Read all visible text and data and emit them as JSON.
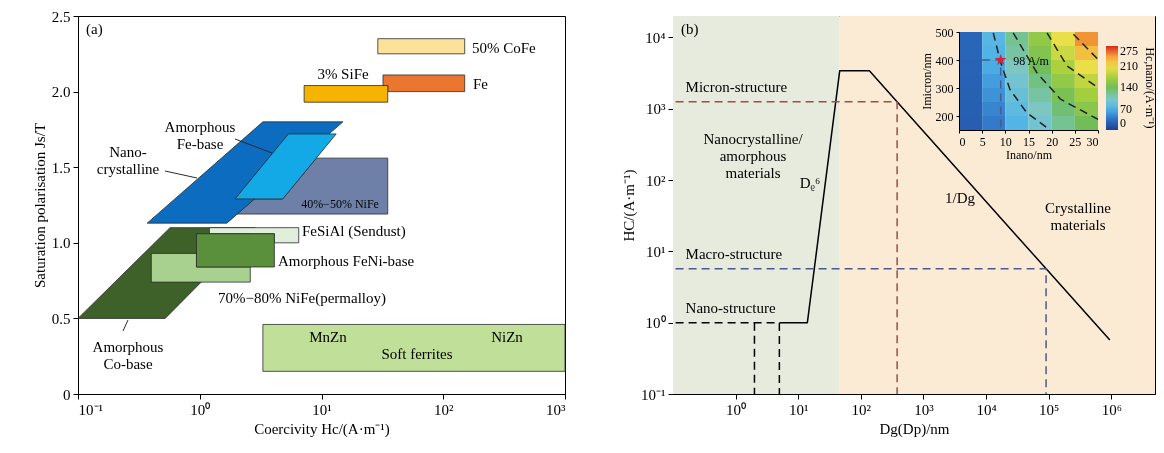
{
  "chart_data": [
    {
      "type": "area",
      "xlabel": "Coercivity Hc/(A·m⁻¹)",
      "ylabel": "Saturation polarisation Js/T",
      "log": "x",
      "xlim": [
        0.1,
        1000
      ],
      "xticks": [
        {
          "value": 0.1,
          "label": "10⁻¹"
        },
        {
          "value": 1,
          "label": "10⁰"
        },
        {
          "value": 10,
          "label": "10¹"
        },
        {
          "value": 100,
          "label": "10²"
        },
        {
          "value": 1000,
          "label": "10³"
        }
      ],
      "ylim": [
        0,
        2.5
      ],
      "yticks": [
        0,
        0.5,
        {
          "value": 1,
          "label": "1.0"
        },
        1.5,
        {
          "value": 2,
          "label": "2.0"
        },
        2.5
      ],
      "series": [
        {
          "name": "Amorphous\nCo-base",
          "x": [
            0.1,
            0.52,
            2.85,
            0.57,
            0.1
          ],
          "values": [
            0.5,
            0.5,
            1.1,
            1.1,
            0.5
          ],
          "color": "#3d6128"
        },
        {
          "name": "FeSiAl (Sendust)",
          "x": [
            1.2,
            4.1,
            4.1,
            6.5,
            6.5,
            1.2,
            1.2
          ],
          "values": [
            1.06,
            1.06,
            1.0,
            1.0,
            1.1,
            1.1,
            1.06
          ],
          "color": "#e0eedb"
        },
        {
          "name": "70%−80% NiFe(permalloy)",
          "x": [
            0.4,
            2.6,
            2.6,
            0.94,
            0.94,
            0.4,
            0.4
          ],
          "values": [
            0.74,
            0.74,
            0.84,
            0.84,
            0.93,
            0.93,
            0.74
          ],
          "color": "#a8d18f"
        },
        {
          "name": "Amorphous FeNi-base",
          "x": [
            0.94,
            4.1,
            4.1,
            0.94,
            0.94
          ],
          "values": [
            0.84,
            0.84,
            1.06,
            1.06,
            0.84
          ],
          "color": "#5a8f3c"
        },
        {
          "name": "40%−50% NiFe",
          "x": [
            2.01,
            35,
            35,
            9.1,
            4.8,
            2.8,
            2.01
          ],
          "values": [
            1.19,
            1.19,
            1.56,
            1.56,
            1.29,
            1.29,
            1.19
          ],
          "color": "#6f80a8"
        },
        {
          "name": "Nano-\ncrystalline",
          "x": [
            0.37,
            1.67,
            15,
            3.3,
            0.37
          ],
          "values": [
            1.13,
            1.13,
            1.8,
            1.8,
            1.13
          ],
          "color": "#0b6cc0"
        },
        {
          "name": "Amorphous\nFe-base",
          "x": [
            1.95,
            4.8,
            13.2,
            5.35,
            1.95
          ],
          "values": [
            1.29,
            1.29,
            1.72,
            1.72,
            1.29
          ],
          "color": "#12a9e6"
        },
        {
          "name": "Fe",
          "x": [
            35,
            150,
            150,
            32,
            32,
            35,
            35
          ],
          "values": [
            2.0,
            2.0,
            2.11,
            2.11,
            2.04,
            2.04,
            2.0
          ],
          "color": "#ea7630"
        },
        {
          "name": "3% SiFe",
          "x": [
            7.2,
            35,
            35,
            7.2,
            7.2
          ],
          "values": [
            1.93,
            1.93,
            2.04,
            2.04,
            1.93
          ],
          "color": "#f6b400"
        },
        {
          "name": "50% CoFe",
          "x": [
            29,
            150,
            150,
            29,
            29
          ],
          "values": [
            2.25,
            2.25,
            2.35,
            2.35,
            2.25
          ],
          "color": "#fbe29b"
        },
        {
          "name": "Soft ferrites",
          "x": [
            3.3,
            1000,
            1000,
            3.3,
            3.3
          ],
          "values": [
            0.15,
            0.15,
            0.46,
            0.46,
            0.15
          ],
          "color": "#c0df98"
        }
      ],
      "annotations": [
        "(a)",
        "MnZn",
        "NiZn"
      ]
    },
    {
      "type": "line",
      "xlabel": "Dg(Dp)/nm",
      "ylabel": "HC/(A·m⁻¹)",
      "log": "xy",
      "xlim": [
        0.1,
        5000000
      ],
      "xticks": [
        {
          "value": 1,
          "label": "10⁰"
        },
        {
          "value": 10,
          "label": "10¹"
        },
        {
          "value": 100,
          "label": "10²"
        },
        {
          "value": 1000,
          "label": "10³"
        },
        {
          "value": 10000,
          "label": "10⁴"
        },
        {
          "value": 100000,
          "label": "10⁵"
        },
        {
          "value": 1000000,
          "label": "10⁶"
        }
      ],
      "ylim": [
        0.1,
        20000
      ],
      "yticks": [
        {
          "value": 0.1,
          "label": "10⁻¹"
        },
        {
          "value": 1,
          "label": "10⁰"
        },
        {
          "value": 10,
          "label": "10¹"
        },
        {
          "value": 100,
          "label": "10²"
        },
        {
          "value": 1000,
          "label": "10³"
        },
        {
          "value": 10000,
          "label": "10⁴"
        }
      ],
      "bands": [
        {
          "axis": "x",
          "from": 0.1,
          "to": 46,
          "color": "#e6ebde",
          "label": "Nanocrystalline/\namorphous\nmaterials"
        },
        {
          "axis": "x",
          "from": 46,
          "to": 5000000,
          "color": "#fcebd4",
          "label": "Crystalline\nmaterials"
        }
      ],
      "series": [
        {
          "x": [
            5,
            14,
            46,
            137,
            950000
          ],
          "values": [
            1,
            1,
            3400,
            3400,
            0.57
          ],
          "color": "#000000"
        },
        {
          "name": "Micron-structure",
          "x": [
            0.11,
            380,
            380
          ],
          "values": [
            1250,
            1250,
            0.1
          ],
          "color": "#9c4f45",
          "line_style": "dashed"
        },
        {
          "name": "Macro-structure",
          "x": [
            0.11,
            91000,
            91000
          ],
          "values": [
            5.7,
            5.7,
            0.1
          ],
          "color": "#4b5990",
          "line_style": "dashed"
        },
        {
          "name": "Nano-structure",
          "x": [
            0.11,
            5,
            5
          ],
          "values": [
            1,
            1,
            0.1
          ],
          "color": "#000000",
          "line_style": "dashed"
        },
        {
          "x": [
            2,
            2
          ],
          "values": [
            1,
            0.1
          ],
          "color": "#000000",
          "line_style": "dashed"
        }
      ],
      "annotations": [
        "(b)",
        "Dᵨ⁶",
        "1/Dg"
      ]
    },
    {
      "type": "heatmap",
      "xlabel": "Inano/nm",
      "ylabel": "Imicron/nm",
      "clabel": "Hc,nano/(A·m⁻¹)",
      "xlim": [
        0,
        30
      ],
      "xticks": [
        0,
        5,
        10,
        15,
        20,
        25,
        30
      ],
      "ylim": [
        150,
        500
      ],
      "yticks": [
        200,
        300,
        400,
        500
      ],
      "clim": [
        0,
        275
      ],
      "cticks": [
        0,
        70,
        140,
        210,
        275
      ],
      "cells": [
        [
          28,
          75,
          120,
          160,
          205,
          245
        ],
        [
          27,
          70,
          115,
          150,
          190,
          225
        ],
        [
          26,
          65,
          105,
          140,
          175,
          205
        ],
        [
          25,
          58,
          95,
          125,
          160,
          185
        ],
        [
          24,
          52,
          88,
          115,
          145,
          170
        ],
        [
          23,
          45,
          80,
          105,
          130,
          155
        ],
        [
          22,
          40,
          72,
          95,
          120,
          140
        ]
      ],
      "series": [
        {
          "type": "line",
          "x": [
            7.4,
            8.9,
            11,
            14.6,
            19
          ],
          "values": [
            497,
            396,
            295,
            212,
            158
          ],
          "color": "#222222",
          "line_style": "dashed"
        },
        {
          "type": "line",
          "x": [
            11.7,
            16.8,
            21.9,
            30
          ],
          "values": [
            497,
            355,
            260,
            188
          ],
          "color": "#222222",
          "line_style": "dashed"
        },
        {
          "type": "line",
          "x": [
            19,
            23.3,
            30
          ],
          "values": [
            497,
            379,
            301
          ],
          "color": "#222222",
          "line_style": "dashed"
        },
        {
          "type": "line",
          "x": [
            24.7,
            30
          ],
          "values": [
            492,
            402
          ],
          "color": "#222222",
          "line_style": "dashed"
        },
        {
          "type": "line",
          "x": [
            5,
            9,
            9
          ],
          "values": [
            400,
            400,
            150
          ],
          "color": "#4a5a8a",
          "line_style": "dashed"
        },
        {
          "type": "scatter",
          "x": [
            9
          ],
          "values": [
            400
          ],
          "color": "#d0253a",
          "marker": "star"
        }
      ],
      "annotations": [
        "98 A/m"
      ]
    }
  ]
}
